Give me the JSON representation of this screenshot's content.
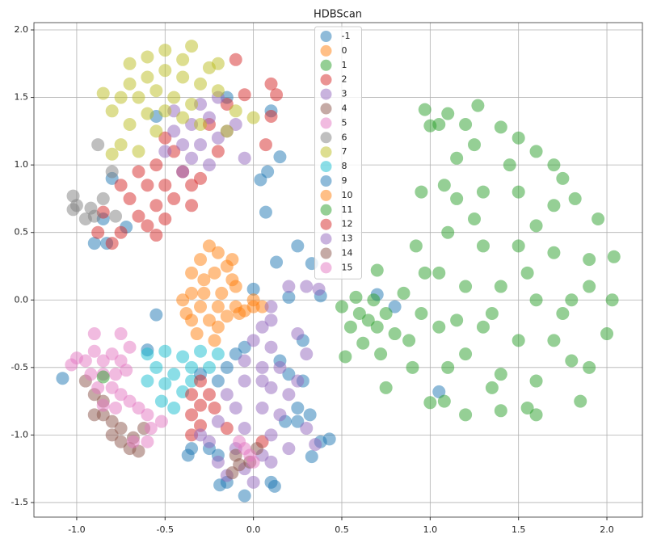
{
  "chart_data": {
    "type": "scatter",
    "title": "HDBScan",
    "xlim": [
      -1.242,
      2.201
    ],
    "ylim": [
      -1.608,
      2.054
    ],
    "xticks": [
      {
        "value": -1.0,
        "label": "-1.0"
      },
      -0.5,
      {
        "value": 0.0,
        "label": "0.0"
      },
      0.5,
      {
        "value": 1.0,
        "label": "1.0"
      },
      1.5,
      {
        "value": 2.0,
        "label": "2.0"
      }
    ],
    "yticks": [
      -1.5,
      {
        "value": -1.0,
        "label": "-1.0"
      },
      -0.5,
      {
        "value": 0.0,
        "label": "0.0"
      },
      0.5,
      {
        "value": 1.0,
        "label": "1.0"
      },
      1.5,
      {
        "value": 2.0,
        "label": "2.0"
      }
    ],
    "grid": true,
    "legend": "upper center",
    "series": [
      {
        "name": "-1",
        "color": "#1f77b4",
        "x": [
          -1.08,
          -0.85,
          -0.8,
          -0.9,
          -0.83,
          -0.72,
          -0.55,
          -0.15,
          0.1,
          0.15,
          0.08,
          0.04,
          0.07,
          0.25,
          0.13,
          0.33,
          0.2,
          0.38,
          0.7,
          0.8,
          0.28,
          0.25,
          0.32,
          0.33,
          0.43,
          0.38,
          0.12,
          -0.05,
          -0.19,
          -0.55,
          -0.6,
          -0.37,
          1.05,
          0.28,
          0.0
        ],
        "values": [
          -0.58,
          0.6,
          0.9,
          0.42,
          0.42,
          0.54,
          1.36,
          1.5,
          1.4,
          1.06,
          0.95,
          0.89,
          0.65,
          0.4,
          0.28,
          0.27,
          0.02,
          0.03,
          0.04,
          -0.05,
          -0.6,
          -0.9,
          -0.85,
          -1.16,
          -1.03,
          -1.05,
          -1.38,
          -1.45,
          -1.37,
          -0.11,
          -0.37,
          -1.15,
          -0.68,
          -0.3,
          0.08
        ]
      },
      {
        "name": "0",
        "color": "#ff7f0e",
        "x": [
          -0.25,
          -0.2,
          -0.3,
          -0.15,
          -0.35,
          -0.22,
          -0.12,
          -0.35,
          -0.28,
          -0.18,
          -0.1,
          -0.4,
          -0.3,
          -0.2,
          -0.1,
          -0.35,
          -0.25,
          -0.15,
          -0.32,
          -0.2,
          -0.28,
          -0.05,
          0.0,
          -0.38,
          -0.22,
          -0.12
        ],
        "values": [
          0.4,
          0.35,
          0.3,
          0.25,
          0.2,
          0.2,
          0.15,
          0.05,
          0.05,
          0.05,
          0.1,
          0.0,
          -0.05,
          -0.05,
          -0.05,
          -0.15,
          -0.15,
          -0.12,
          -0.25,
          -0.2,
          0.15,
          -0.08,
          -0.05,
          -0.1,
          -0.3,
          0.3
        ]
      },
      {
        "name": "1",
        "color": "#2ca02c",
        "x": [
          0.5,
          0.55,
          0.52,
          0.6,
          0.58,
          0.65,
          0.62,
          0.7,
          0.68,
          0.75,
          0.72,
          0.75,
          0.8,
          0.85,
          0.88,
          0.9,
          0.95,
          0.97,
          0.92,
          0.95,
          1.0,
          0.7,
          1.0,
          0.97,
          1.05,
          1.1,
          1.2,
          1.27,
          1.4,
          1.5,
          1.6,
          1.7,
          1.82,
          1.95,
          2.04,
          2.03,
          2.0,
          1.9,
          1.85,
          1.6,
          1.4,
          1.2,
          1.08,
          1.1,
          1.05,
          1.05,
          1.1,
          1.08,
          1.15,
          1.3,
          1.5,
          1.7,
          1.3,
          1.5,
          1.7,
          1.9,
          1.2,
          1.4,
          1.6,
          1.8,
          1.3,
          1.5,
          1.7,
          1.2,
          1.4,
          1.6,
          1.8,
          1.25,
          1.45,
          1.6,
          1.35,
          1.55,
          1.75,
          1.9,
          1.15,
          1.25,
          1.15,
          1.35,
          1.75,
          1.55
        ],
        "values": [
          -0.05,
          -0.2,
          -0.42,
          -0.1,
          0.02,
          -0.15,
          -0.32,
          -0.2,
          0.0,
          -0.1,
          -0.4,
          -0.65,
          -0.25,
          0.05,
          -0.3,
          -0.5,
          -0.1,
          0.2,
          0.4,
          0.8,
          -0.76,
          0.22,
          1.29,
          1.41,
          1.3,
          1.38,
          1.3,
          1.44,
          1.28,
          1.2,
          1.1,
          1.0,
          0.75,
          0.6,
          0.32,
          0.0,
          -0.25,
          -0.5,
          -0.75,
          -0.85,
          -0.82,
          -0.85,
          -0.75,
          -0.5,
          -0.2,
          0.2,
          0.5,
          0.85,
          1.05,
          0.8,
          0.8,
          0.7,
          0.4,
          0.4,
          0.35,
          0.3,
          0.1,
          0.1,
          0.0,
          0.0,
          -0.2,
          -0.3,
          -0.3,
          -0.4,
          -0.55,
          -0.6,
          -0.45,
          0.6,
          1.0,
          0.55,
          -0.1,
          0.2,
          -0.1,
          0.1,
          -0.15,
          1.15,
          0.75,
          -0.65,
          0.9,
          -0.8
        ]
      },
      {
        "name": "2",
        "color": "#d62728",
        "x": [
          -0.5,
          -0.45,
          -0.55,
          -0.65,
          -0.4,
          -0.6,
          -0.5,
          -0.7,
          -0.55,
          -0.45,
          -0.65,
          -0.6,
          -0.75,
          -0.5,
          -0.35,
          -0.35,
          -0.8,
          -0.88,
          -0.75,
          -0.85,
          -0.3,
          -0.2,
          0.1,
          -0.1,
          -0.05,
          0.13,
          0.07,
          -0.25,
          -0.15,
          0.1,
          -0.55
        ],
        "values": [
          1.2,
          1.1,
          1.0,
          0.95,
          0.95,
          0.85,
          0.85,
          0.75,
          0.7,
          0.75,
          0.62,
          0.55,
          0.5,
          0.6,
          0.85,
          0.7,
          0.42,
          0.5,
          0.85,
          0.65,
          0.9,
          1.1,
          1.6,
          1.78,
          1.52,
          1.52,
          1.15,
          1.3,
          1.45,
          1.36,
          0.48
        ]
      },
      {
        "name": "3",
        "color": "#9467bd",
        "x": [
          -0.45,
          -0.35,
          -0.25,
          -0.4,
          -0.3,
          -0.2,
          -0.5,
          -0.35,
          -0.15,
          -0.3,
          -0.2,
          -0.4,
          -0.1,
          -0.05,
          0.2,
          0.3,
          0.37,
          -0.25,
          -0.45
        ],
        "values": [
          1.25,
          1.3,
          1.35,
          1.15,
          1.15,
          1.2,
          1.1,
          1.05,
          1.25,
          1.45,
          1.5,
          0.95,
          1.3,
          1.05,
          0.1,
          0.1,
          0.08,
          1.0,
          1.4
        ]
      },
      {
        "name": "4",
        "color": "#8c564b",
        "x": [
          -0.95,
          -0.9,
          -0.85,
          -0.9,
          -0.85,
          -0.8,
          -0.75,
          -0.75,
          -0.7,
          -0.65,
          -0.8,
          -0.68,
          -0.62
        ],
        "values": [
          -0.6,
          -0.7,
          -0.75,
          -0.85,
          -0.85,
          -0.9,
          -0.95,
          -1.05,
          -1.1,
          -1.12,
          -1.0,
          -1.02,
          -0.95
        ]
      },
      {
        "name": "5",
        "color": "#e377c2",
        "x": [
          -1.0,
          -0.95,
          -0.9,
          -0.85,
          -0.8,
          -0.75,
          -0.92,
          -0.85,
          -0.78,
          -0.72,
          -0.88,
          -0.8,
          -0.75,
          -0.85,
          -0.78,
          -0.7,
          -0.75,
          -0.9,
          -0.65,
          -0.6,
          -0.58,
          -0.6,
          -0.52,
          -0.68,
          -1.03,
          -0.7
        ],
        "values": [
          -0.43,
          -0.45,
          -0.38,
          -0.45,
          -0.4,
          -0.45,
          -0.55,
          -0.55,
          -0.55,
          -0.52,
          -0.65,
          -0.65,
          -0.7,
          -0.78,
          -0.8,
          -0.75,
          -0.25,
          -0.25,
          -0.8,
          -0.85,
          -0.95,
          -1.05,
          -0.9,
          -1.05,
          -0.48,
          -0.35
        ]
      },
      {
        "name": "6",
        "color": "#7f7f7f",
        "x": [
          -1.02,
          -1.0,
          -1.02,
          -0.95,
          -0.92,
          -0.85,
          -0.8,
          -0.88,
          -0.9,
          -0.78
        ],
        "values": [
          0.77,
          0.7,
          0.67,
          0.6,
          0.68,
          0.75,
          0.95,
          1.15,
          0.62,
          0.62
        ]
      },
      {
        "name": "7",
        "color": "#bcbd22",
        "x": [
          -0.7,
          -0.6,
          -0.5,
          -0.4,
          -0.35,
          -0.7,
          -0.6,
          -0.5,
          -0.4,
          -0.3,
          -0.75,
          -0.65,
          -0.55,
          -0.45,
          -0.35,
          -0.8,
          -0.6,
          -0.5,
          -0.4,
          -0.7,
          -0.55,
          -0.75,
          -0.65,
          -0.25,
          -0.2,
          -0.1,
          -0.15,
          0.0,
          -0.85,
          -0.8,
          -0.2,
          -0.3
        ],
        "values": [
          1.75,
          1.8,
          1.85,
          1.78,
          1.88,
          1.6,
          1.65,
          1.7,
          1.65,
          1.6,
          1.5,
          1.5,
          1.55,
          1.5,
          1.45,
          1.4,
          1.38,
          1.4,
          1.35,
          1.3,
          1.25,
          1.15,
          1.1,
          1.72,
          1.55,
          1.4,
          1.25,
          1.35,
          1.53,
          1.08,
          1.75,
          1.3
        ]
      },
      {
        "name": "8",
        "color": "#17becf",
        "x": [
          -0.6,
          -0.5,
          -0.4,
          -0.3,
          -0.2,
          -0.55,
          -0.45,
          -0.35,
          -0.5,
          -0.4,
          -0.52,
          -0.45,
          -0.35,
          -0.25,
          -0.6
        ],
        "values": [
          -0.4,
          -0.38,
          -0.42,
          -0.38,
          -0.4,
          -0.5,
          -0.55,
          -0.5,
          -0.62,
          -0.68,
          -0.75,
          -0.8,
          -0.6,
          -0.5,
          -0.6
        ]
      },
      {
        "name": "9",
        "color": "#1f77b4",
        "x": [
          -0.2,
          -0.15,
          -0.1,
          -0.05,
          -0.3,
          -0.25,
          -0.2,
          -0.35,
          0.15,
          0.2,
          0.18,
          0.1,
          -0.15,
          0.25
        ],
        "values": [
          -0.6,
          -0.5,
          -0.4,
          -0.35,
          -0.55,
          -1.1,
          -1.15,
          -1.1,
          -0.45,
          -0.55,
          -0.9,
          -1.35,
          -1.35,
          -0.8
        ]
      },
      {
        "name": "10",
        "color": "#ff7f0e",
        "x": [
          0.05,
          0.0,
          -0.08
        ],
        "values": [
          -0.05,
          0.0,
          -0.1
        ]
      },
      {
        "name": "11",
        "color": "#2ca02c",
        "x": [
          -0.85
        ],
        "values": [
          -0.57
        ]
      },
      {
        "name": "12",
        "color": "#d62728",
        "x": [
          -0.3,
          -0.35,
          -0.3,
          -0.35,
          -0.3,
          -0.25,
          -0.22,
          -0.35,
          -0.15,
          0.05
        ],
        "values": [
          -0.6,
          -0.7,
          -0.78,
          -0.85,
          -0.93,
          -0.7,
          -0.8,
          -1.0,
          -0.95,
          -1.05
        ]
      },
      {
        "name": "13",
        "color": "#9467bd",
        "x": [
          0.05,
          0.1,
          0.0,
          0.1,
          -0.05,
          0.05,
          0.15,
          -0.05,
          0.1,
          0.2,
          -0.15,
          -0.1,
          0.05,
          0.15,
          -0.2,
          -0.05,
          0.1,
          -0.25,
          -0.1,
          0.05,
          -0.2,
          -0.05,
          0.1,
          -0.15,
          0.0,
          0.25,
          0.3,
          0.25,
          0.3,
          0.35,
          -0.3,
          0.2,
          0.1,
          0.05
        ],
        "values": [
          -0.2,
          -0.15,
          -0.3,
          -0.35,
          -0.45,
          -0.5,
          -0.5,
          -0.6,
          -0.65,
          -0.7,
          -0.7,
          -0.8,
          -0.8,
          -0.85,
          -0.9,
          -0.95,
          -1.0,
          -1.05,
          -1.1,
          -1.15,
          -1.2,
          -1.25,
          -1.2,
          -1.3,
          -1.35,
          -0.6,
          -0.4,
          -0.25,
          -0.95,
          -1.07,
          -1.0,
          -1.1,
          -0.05,
          -0.6
        ]
      },
      {
        "name": "14",
        "color": "#8c564b",
        "x": [
          -0.1,
          -0.08,
          -0.02,
          -0.12,
          0.02
        ],
        "values": [
          -1.15,
          -1.22,
          -1.2,
          -1.28,
          -1.1
        ]
      },
      {
        "name": "15",
        "color": "#e377c2",
        "x": [
          -0.05,
          -0.02,
          0.0,
          -0.08
        ],
        "values": [
          -1.1,
          -1.15,
          -1.2,
          -1.05
        ]
      }
    ]
  }
}
